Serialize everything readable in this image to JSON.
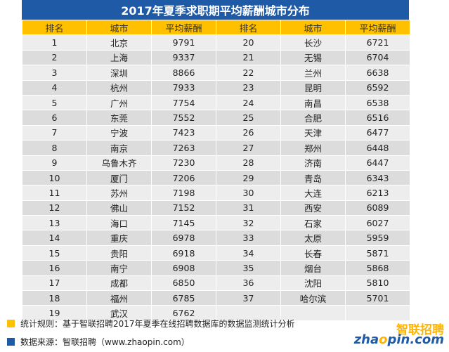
{
  "title": "2017年夏季求职期平均薪酬城市分布",
  "headers": [
    "排名",
    "城市",
    "平均薪酬",
    "排名",
    "城市",
    "平均薪酬"
  ],
  "rows": [
    [
      "1",
      "北京",
      "9791",
      "20",
      "长沙",
      "6721"
    ],
    [
      "2",
      "上海",
      "9337",
      "21",
      "无锡",
      "6704"
    ],
    [
      "3",
      "深圳",
      "8866",
      "22",
      "兰州",
      "6638"
    ],
    [
      "4",
      "杭州",
      "7933",
      "23",
      "昆明",
      "6592"
    ],
    [
      "5",
      "广州",
      "7754",
      "24",
      "南昌",
      "6538"
    ],
    [
      "6",
      "东莞",
      "7552",
      "25",
      "合肥",
      "6516"
    ],
    [
      "7",
      "宁波",
      "7423",
      "26",
      "天津",
      "6477"
    ],
    [
      "8",
      "南京",
      "7263",
      "27",
      "郑州",
      "6448"
    ],
    [
      "9",
      "乌鲁木齐",
      "7230",
      "28",
      "济南",
      "6447"
    ],
    [
      "10",
      "厦门",
      "7206",
      "29",
      "青岛",
      "6343"
    ],
    [
      "11",
      "苏州",
      "7198",
      "30",
      "大连",
      "6213"
    ],
    [
      "12",
      "佛山",
      "7152",
      "31",
      "西安",
      "6089"
    ],
    [
      "13",
      "海口",
      "7145",
      "32",
      "石家",
      "6027"
    ],
    [
      "14",
      "重庆",
      "6978",
      "33",
      "太原",
      "5959"
    ],
    [
      "15",
      "贵阳",
      "6918",
      "34",
      "长春",
      "5871"
    ],
    [
      "16",
      "南宁",
      "6908",
      "35",
      "烟台",
      "5868"
    ],
    [
      "17",
      "成都",
      "6850",
      "36",
      "沈阳",
      "5810"
    ],
    [
      "18",
      "福州",
      "6785",
      "37",
      "哈尔滨",
      "5701"
    ],
    [
      "19",
      "武汉",
      "6762",
      "",
      "",
      ""
    ]
  ],
  "footer": {
    "rule": "统计规则：基于智联招聘2017年夏季在线招聘数据库的数据监测统计分析",
    "source": "数据来源：智联招聘（www.zhaopin.com）"
  },
  "logo": {
    "cn": "智联招聘",
    "en_prefix": "zha",
    "en_dot": "o",
    "en_suffix": "pin.com"
  },
  "colors": {
    "title_bg": "#1f5aa6",
    "header_bg": "#ffc000",
    "row_light": "#ededed",
    "row_dark": "#dcdcdc",
    "accent_yellow": "#ffc000",
    "accent_blue": "#1f5aa6"
  }
}
